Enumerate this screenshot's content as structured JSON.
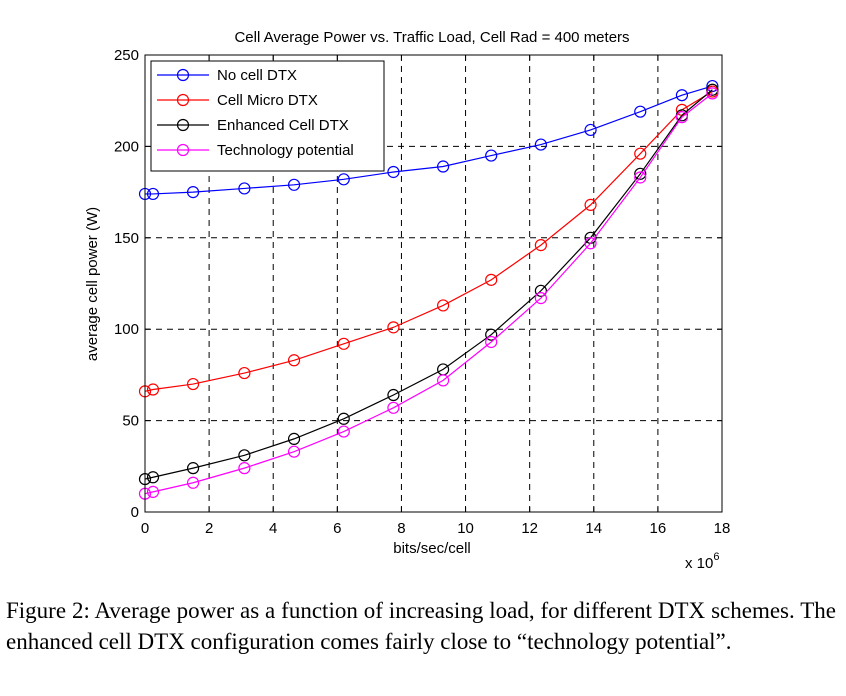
{
  "chart_data": {
    "type": "line",
    "title": "Cell Average Power vs. Traffic Load, Cell Rad = 400 meters",
    "xlabel": "bits/sec/cell",
    "ylabel": "average cell power (W)",
    "x_multiplier_base": "x 10",
    "x_multiplier_exp": "6",
    "xlim": [
      0,
      18
    ],
    "ylim": [
      0,
      250
    ],
    "xticks": [
      0,
      2,
      4,
      6,
      8,
      10,
      12,
      14,
      16,
      18
    ],
    "yticks": [
      0,
      50,
      100,
      150,
      200,
      250
    ],
    "grid": true,
    "legend_position": "top-left",
    "x": [
      0,
      0.25,
      1.5,
      3.1,
      4.65,
      6.2,
      7.75,
      9.3,
      10.8,
      12.35,
      13.9,
      15.45,
      16.75,
      17.7
    ],
    "series": [
      {
        "name": "No cell DTX",
        "color": "#0000ff",
        "values": [
          174,
          174,
          175,
          177,
          179,
          182,
          186,
          189,
          195,
          201,
          209,
          219,
          228,
          233
        ]
      },
      {
        "name": "Cell Micro DTX",
        "color": "#ff0000",
        "values": [
          66,
          67,
          70,
          76,
          83,
          92,
          101,
          113,
          127,
          146,
          168,
          196,
          220,
          230
        ]
      },
      {
        "name": "Enhanced Cell DTX",
        "color": "#000000",
        "values": [
          18,
          19,
          24,
          31,
          40,
          51,
          64,
          78,
          97,
          121,
          150,
          185,
          217,
          231
        ]
      },
      {
        "name": "Technology potential",
        "color": "#ff00ff",
        "values": [
          10,
          11,
          16,
          24,
          33,
          44,
          57,
          72,
          93,
          117,
          147,
          183,
          216,
          229
        ]
      }
    ]
  },
  "caption": {
    "label": "Figure 2: ",
    "text": "Average power as a function of increasing load, for different DTX schemes. The enhanced cell DTX configuration comes fairly close to “technology potential”."
  }
}
